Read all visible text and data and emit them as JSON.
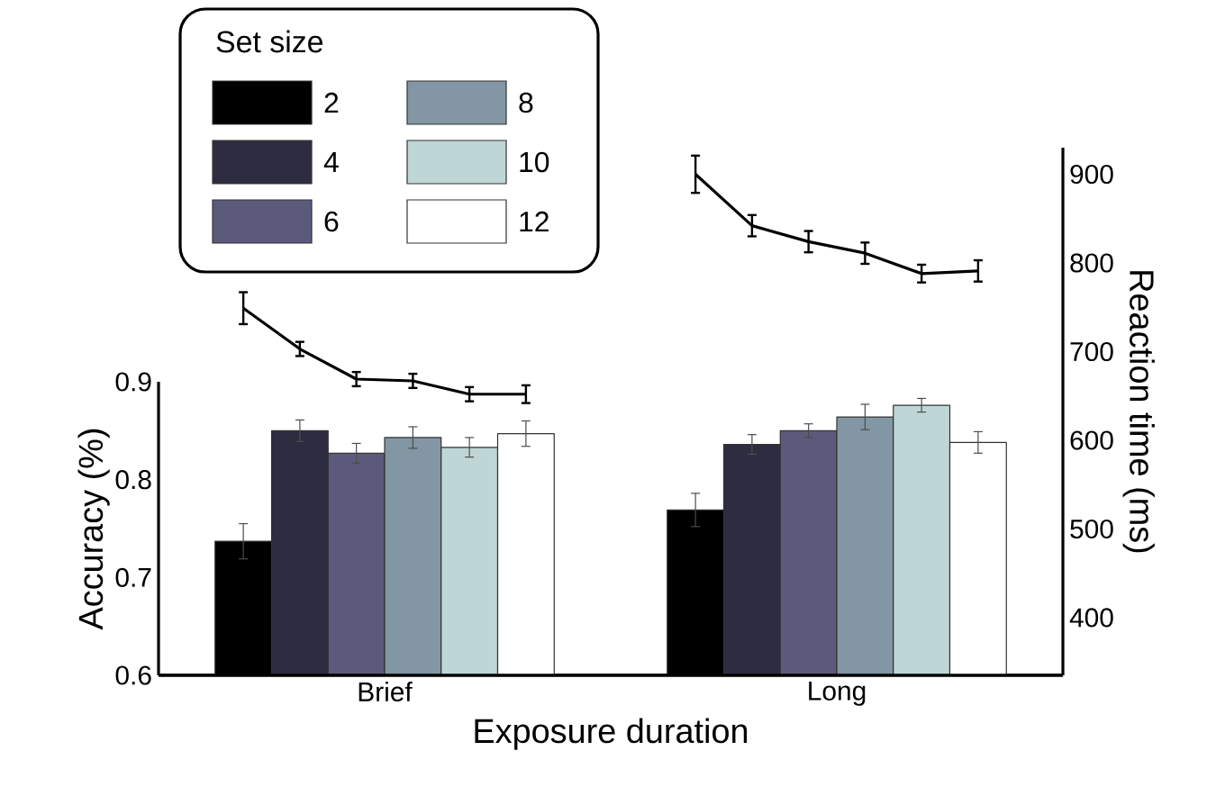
{
  "chart_data": [
    {
      "type": "bar",
      "xlabel": "Exposure duration",
      "ylabel": "Accuracy (%)",
      "legend_title": "Set size",
      "legend": "top left",
      "categories": [
        "Brief",
        "Long"
      ],
      "ylim": [
        0.6,
        0.9
      ],
      "yticks": [
        0.6,
        0.7,
        0.8,
        0.9
      ],
      "series": [
        {
          "name": "2",
          "color": "#000000",
          "values": [
            0.737,
            0.769
          ],
          "errors": [
            0.018,
            0.017
          ]
        },
        {
          "name": "4",
          "color": "#2e2c40",
          "values": [
            0.85,
            0.836
          ],
          "errors": [
            0.011,
            0.01
          ]
        },
        {
          "name": "6",
          "color": "#5c5a7a",
          "values": [
            0.827,
            0.85
          ],
          "errors": [
            0.01,
            0.007
          ]
        },
        {
          "name": "8",
          "color": "#8396a4",
          "values": [
            0.843,
            0.864
          ],
          "errors": [
            0.011,
            0.013
          ]
        },
        {
          "name": "10",
          "color": "#bfd6d6",
          "values": [
            0.833,
            0.876
          ],
          "errors": [
            0.01,
            0.007
          ]
        },
        {
          "name": "12",
          "color": "#ffffff",
          "values": [
            0.847,
            0.838
          ],
          "errors": [
            0.013,
            0.011
          ]
        }
      ]
    },
    {
      "type": "line",
      "ylabel": "Reaction time (ms)",
      "categories": [
        null,
        null,
        null,
        null,
        null,
        null,
        null,
        null,
        null,
        null,
        null,
        null,
        null,
        null,
        null,
        null
      ],
      "ylim": [
        335,
        930
      ],
      "yticks": [
        400,
        500,
        600,
        700,
        800,
        900
      ],
      "series": [
        {
          "color": "#000000",
          "values": [
            null,
            749,
            703,
            669,
            667,
            652,
            652,
            null,
            null,
            null,
            null,
            null,
            null,
            null,
            null,
            null
          ],
          "errors": [
            null,
            18,
            8,
            8,
            8,
            8,
            10,
            null,
            null,
            null,
            null,
            null,
            null,
            null,
            null,
            null
          ]
        },
        {
          "color": "#000000",
          "values": [
            null,
            null,
            null,
            null,
            null,
            null,
            null,
            null,
            null,
            900,
            842,
            824,
            811,
            788,
            791,
            null
          ],
          "errors": [
            null,
            null,
            null,
            null,
            null,
            null,
            null,
            null,
            null,
            21,
            12,
            12,
            12,
            10,
            12,
            null
          ]
        }
      ]
    }
  ]
}
